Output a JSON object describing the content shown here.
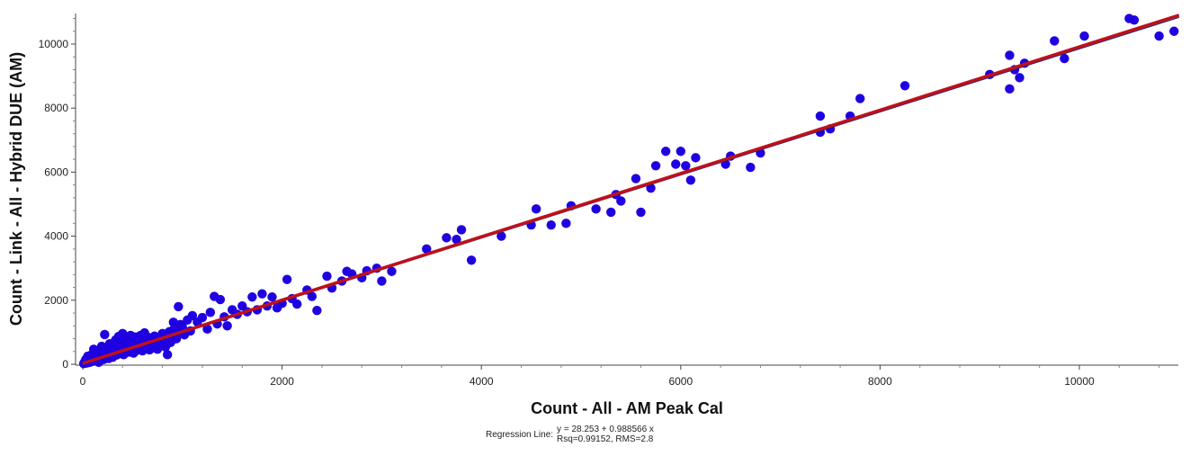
{
  "chart_data": {
    "type": "scatter",
    "xlabel": "Count - All - AM Peak Cal",
    "ylabel": "Count - Link - All - Hybrid DUE (AM)",
    "xlim": [
      0,
      11000
    ],
    "ylim": [
      0,
      11000
    ],
    "xticks": [
      "0",
      "2000",
      "4000",
      "6000",
      "8000",
      "10000"
    ],
    "yticks": [
      "0",
      "2000",
      "4000",
      "6000",
      "8000",
      "10000"
    ],
    "colors": {
      "points": "#1f00e0",
      "regression": "#c0101a",
      "reference": "#1f2a6e"
    },
    "regression": {
      "label": "Regression Line:",
      "equation": "y = 28.253 + 0.988566 x",
      "stats": "Rsq=0.99152, RMS=2.8",
      "intercept": 28.253,
      "slope": 0.988566
    },
    "points": [
      [
        10,
        20
      ],
      [
        20,
        80
      ],
      [
        30,
        150
      ],
      [
        40,
        40
      ],
      [
        50,
        250
      ],
      [
        60,
        110
      ],
      [
        70,
        60
      ],
      [
        80,
        180
      ],
      [
        90,
        300
      ],
      [
        100,
        90
      ],
      [
        110,
        470
      ],
      [
        120,
        210
      ],
      [
        130,
        130
      ],
      [
        140,
        350
      ],
      [
        150,
        270
      ],
      [
        160,
        60
      ],
      [
        170,
        420
      ],
      [
        180,
        190
      ],
      [
        190,
        560
      ],
      [
        200,
        320
      ],
      [
        210,
        150
      ],
      [
        220,
        930
      ],
      [
        230,
        400
      ],
      [
        240,
        260
      ],
      [
        250,
        520
      ],
      [
        260,
        180
      ],
      [
        270,
        640
      ],
      [
        280,
        340
      ],
      [
        290,
        470
      ],
      [
        300,
        220
      ],
      [
        310,
        580
      ],
      [
        320,
        390
      ],
      [
        330,
        760
      ],
      [
        340,
        290
      ],
      [
        350,
        490
      ],
      [
        360,
        870
      ],
      [
        370,
        360
      ],
      [
        380,
        620
      ],
      [
        390,
        450
      ],
      [
        400,
        960
      ],
      [
        410,
        300
      ],
      [
        420,
        700
      ],
      [
        430,
        540
      ],
      [
        440,
        410
      ],
      [
        450,
        810
      ],
      [
        460,
        380
      ],
      [
        470,
        610
      ],
      [
        480,
        900
      ],
      [
        490,
        470
      ],
      [
        500,
        720
      ],
      [
        510,
        350
      ],
      [
        520,
        550
      ],
      [
        530,
        850
      ],
      [
        540,
        430
      ],
      [
        550,
        650
      ],
      [
        560,
        780
      ],
      [
        570,
        500
      ],
      [
        580,
        900
      ],
      [
        590,
        600
      ],
      [
        600,
        420
      ],
      [
        610,
        740
      ],
      [
        620,
        980
      ],
      [
        630,
        520
      ],
      [
        640,
        660
      ],
      [
        650,
        850
      ],
      [
        660,
        560
      ],
      [
        670,
        450
      ],
      [
        680,
        700
      ],
      [
        690,
        800
      ],
      [
        700,
        600
      ],
      [
        710,
        520
      ],
      [
        720,
        880
      ],
      [
        730,
        650
      ],
      [
        740,
        770
      ],
      [
        750,
        470
      ],
      [
        760,
        690
      ],
      [
        770,
        830
      ],
      [
        780,
        600
      ],
      [
        790,
        740
      ],
      [
        800,
        960
      ],
      [
        810,
        640
      ],
      [
        820,
        780
      ],
      [
        830,
        540
      ],
      [
        840,
        720
      ],
      [
        850,
        300
      ],
      [
        860,
        850
      ],
      [
        870,
        1020
      ],
      [
        880,
        680
      ],
      [
        890,
        920
      ],
      [
        900,
        760
      ],
      [
        910,
        1310
      ],
      [
        920,
        1120
      ],
      [
        930,
        880
      ],
      [
        940,
        800
      ],
      [
        950,
        1060
      ],
      [
        960,
        1800
      ],
      [
        970,
        1000
      ],
      [
        980,
        1240
      ],
      [
        1000,
        1160
      ],
      [
        1020,
        920
      ],
      [
        1050,
        1380
      ],
      [
        1080,
        1040
      ],
      [
        1100,
        1520
      ],
      [
        1150,
        1320
      ],
      [
        1200,
        1460
      ],
      [
        1250,
        1100
      ],
      [
        1280,
        1620
      ],
      [
        1320,
        2120
      ],
      [
        1350,
        1260
      ],
      [
        1380,
        2020
      ],
      [
        1420,
        1480
      ],
      [
        1450,
        1200
      ],
      [
        1500,
        1700
      ],
      [
        1550,
        1560
      ],
      [
        1600,
        1820
      ],
      [
        1650,
        1640
      ],
      [
        1700,
        2100
      ],
      [
        1750,
        1700
      ],
      [
        1800,
        2200
      ],
      [
        1850,
        1820
      ],
      [
        1900,
        2100
      ],
      [
        1950,
        1760
      ],
      [
        2000,
        1900
      ],
      [
        2050,
        2650
      ],
      [
        2100,
        2050
      ],
      [
        2150,
        1880
      ],
      [
        2250,
        2320
      ],
      [
        2300,
        2120
      ],
      [
        2350,
        1680
      ],
      [
        2450,
        2750
      ],
      [
        2500,
        2380
      ],
      [
        2600,
        2600
      ],
      [
        2650,
        2900
      ],
      [
        2700,
        2820
      ],
      [
        2800,
        2700
      ],
      [
        2850,
        2920
      ],
      [
        2950,
        3000
      ],
      [
        3000,
        2600
      ],
      [
        3100,
        2900
      ],
      [
        3450,
        3600
      ],
      [
        3650,
        3950
      ],
      [
        3750,
        3900
      ],
      [
        3800,
        4200
      ],
      [
        3900,
        3250
      ],
      [
        4200,
        4000
      ],
      [
        4500,
        4350
      ],
      [
        4550,
        4850
      ],
      [
        4700,
        4350
      ],
      [
        4850,
        4400
      ],
      [
        4900,
        4950
      ],
      [
        5150,
        4850
      ],
      [
        5300,
        4750
      ],
      [
        5350,
        5300
      ],
      [
        5400,
        5100
      ],
      [
        5550,
        5800
      ],
      [
        5600,
        4750
      ],
      [
        5700,
        5500
      ],
      [
        5750,
        6200
      ],
      [
        5850,
        6650
      ],
      [
        5950,
        6250
      ],
      [
        6000,
        6650
      ],
      [
        6050,
        6200
      ],
      [
        6100,
        5750
      ],
      [
        6150,
        6450
      ],
      [
        6450,
        6250
      ],
      [
        6500,
        6500
      ],
      [
        6700,
        6150
      ],
      [
        6800,
        6600
      ],
      [
        7400,
        7250
      ],
      [
        7400,
        7750
      ],
      [
        7500,
        7350
      ],
      [
        7700,
        7750
      ],
      [
        7800,
        8300
      ],
      [
        8250,
        8700
      ],
      [
        9100,
        9050
      ],
      [
        9300,
        9650
      ],
      [
        9300,
        8600
      ],
      [
        9350,
        9200
      ],
      [
        9400,
        8950
      ],
      [
        9450,
        9400
      ],
      [
        9750,
        10100
      ],
      [
        9850,
        9550
      ],
      [
        10050,
        10250
      ],
      [
        10500,
        10800
      ],
      [
        10550,
        10750
      ],
      [
        10800,
        10250
      ],
      [
        10950,
        10400
      ]
    ]
  }
}
